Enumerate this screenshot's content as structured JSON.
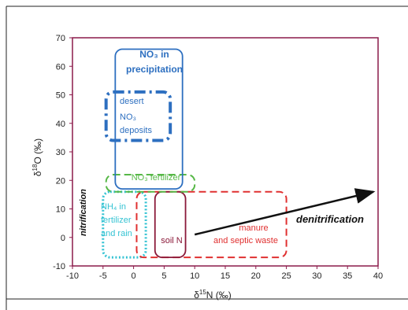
{
  "chart_data": {
    "type": "diagram",
    "xlim": [
      -10,
      40
    ],
    "ylim": [
      -10,
      70
    ],
    "x_ticks": [
      "-10",
      "-5",
      "0",
      "5",
      "10",
      "15",
      "20",
      "25",
      "30",
      "35",
      "40"
    ],
    "y_ticks": [
      "-10",
      "0",
      "10",
      "20",
      "30",
      "40",
      "50",
      "60",
      "70"
    ],
    "xlabel": {
      "main": "δ",
      "sup": "15",
      "rest": "N (‰)"
    },
    "ylabel": {
      "main": "δ",
      "sup": "18",
      "rest": "O (‰)"
    },
    "grid": false,
    "colors": {
      "axis": "#8b1a4a",
      "frame": "#222222"
    },
    "regions": [
      {
        "id": "nh4",
        "x": [
          -5,
          2
        ],
        "y": [
          -7,
          16
        ],
        "color": "#35c3d3",
        "style": "dotted",
        "lines": [
          "NH₄ in",
          "fertilizer",
          "and rain"
        ]
      },
      {
        "id": "manure",
        "x": [
          0.5,
          25
        ],
        "y": [
          -7,
          16
        ],
        "color": "#e03030",
        "style": "dashed",
        "lines": [
          "manure",
          "and septic waste"
        ]
      },
      {
        "id": "soiln",
        "x": [
          3.5,
          8.5
        ],
        "y": [
          -7,
          16
        ],
        "color": "#8b1a3a",
        "style": "solid",
        "lines": [
          "soil N"
        ]
      },
      {
        "id": "no3fert",
        "x": [
          -4.5,
          10
        ],
        "y": [
          16,
          22
        ],
        "color": "#57b847",
        "style": "dashed",
        "lines": [
          "NO₃ fertilizer"
        ]
      },
      {
        "id": "desert",
        "x": [
          -4.5,
          6
        ],
        "y": [
          34,
          51
        ],
        "color": "#2d6fc0",
        "style": "dashdot",
        "lines": [
          "desert",
          "NO₃",
          "deposits"
        ]
      },
      {
        "id": "precip",
        "x": [
          -3,
          8
        ],
        "y": [
          17,
          66
        ],
        "color": "#2d6fc0",
        "style": "solid",
        "lines": [
          "NO₃ in",
          "precipitation"
        ]
      }
    ],
    "annotations": [
      {
        "id": "nitrification",
        "text": "nitrification"
      },
      {
        "id": "denitrification",
        "text": "denitrification"
      }
    ],
    "arrow": {
      "from": [
        10,
        1
      ],
      "to": [
        40,
        16
      ]
    }
  }
}
